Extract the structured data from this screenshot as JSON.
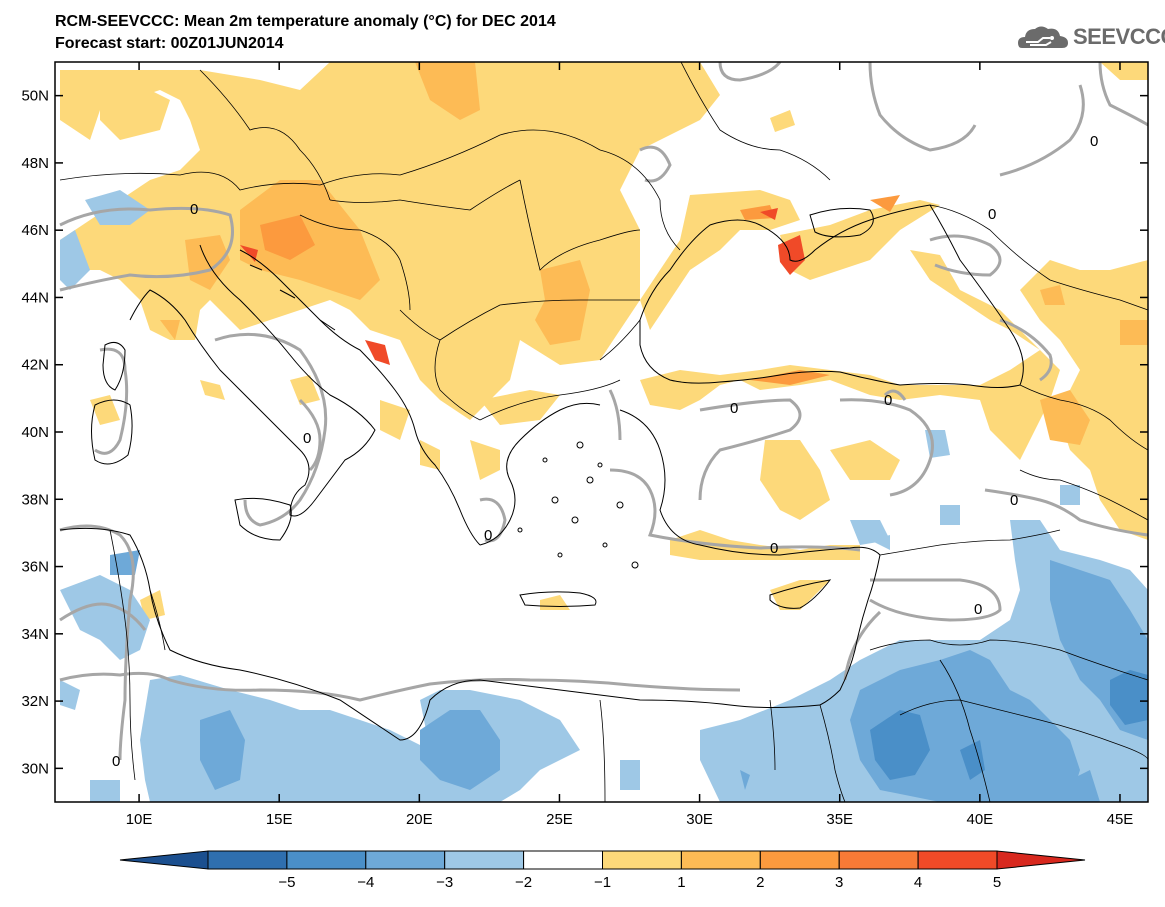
{
  "header": {
    "title": "RCM-SEEVCCC: Mean 2m temperature anomaly (°C) for DEC 2014",
    "subtitle": "Forecast start: 00Z01JUN2014",
    "logo_text": "SEEVCCC"
  },
  "map": {
    "lon_range": [
      7,
      46
    ],
    "lat_range": [
      29,
      51
    ],
    "lon_ticks": [
      {
        "value": 10,
        "label": "10E"
      },
      {
        "value": 15,
        "label": "15E"
      },
      {
        "value": 20,
        "label": "20E"
      },
      {
        "value": 25,
        "label": "25E"
      },
      {
        "value": 30,
        "label": "30E"
      },
      {
        "value": 35,
        "label": "35E"
      },
      {
        "value": 40,
        "label": "40E"
      },
      {
        "value": 45,
        "label": "45E"
      }
    ],
    "lat_ticks": [
      {
        "value": 30,
        "label": "30N"
      },
      {
        "value": 32,
        "label": "32N"
      },
      {
        "value": 34,
        "label": "34N"
      },
      {
        "value": 36,
        "label": "36N"
      },
      {
        "value": 38,
        "label": "38N"
      },
      {
        "value": 40,
        "label": "40N"
      },
      {
        "value": 42,
        "label": "42N"
      },
      {
        "value": 44,
        "label": "44N"
      },
      {
        "value": 46,
        "label": "46N"
      },
      {
        "value": 48,
        "label": "48N"
      },
      {
        "value": 50,
        "label": "50N"
      }
    ],
    "zero_contour_label": "0"
  },
  "colorbar": {
    "bins": [
      {
        "color": "#1b4f8f"
      },
      {
        "color": "#2f6faf"
      },
      {
        "color": "#4a8fc8"
      },
      {
        "color": "#6ea9d8"
      },
      {
        "color": "#9ec8e6"
      },
      {
        "color": "#ffffff"
      },
      {
        "color": "#fdd97a"
      },
      {
        "color": "#fdbb55"
      },
      {
        "color": "#fc9a3e"
      },
      {
        "color": "#f87a36"
      },
      {
        "color": "#f04a28"
      },
      {
        "color": "#d8281e"
      }
    ],
    "labels": [
      "−5",
      "−4",
      "−3",
      "−2",
      "−1",
      "1",
      "2",
      "3",
      "4",
      "5"
    ]
  },
  "colors": {
    "contour": "#a6a6a6",
    "coast": "#000000",
    "warm1": "#fdd97a",
    "warm2": "#fdbb55",
    "warm3": "#fc9a3e",
    "warm4": "#f04a28",
    "cool1": "#9ec8e6",
    "cool2": "#6ea9d8",
    "cool3": "#4a8fc8"
  }
}
